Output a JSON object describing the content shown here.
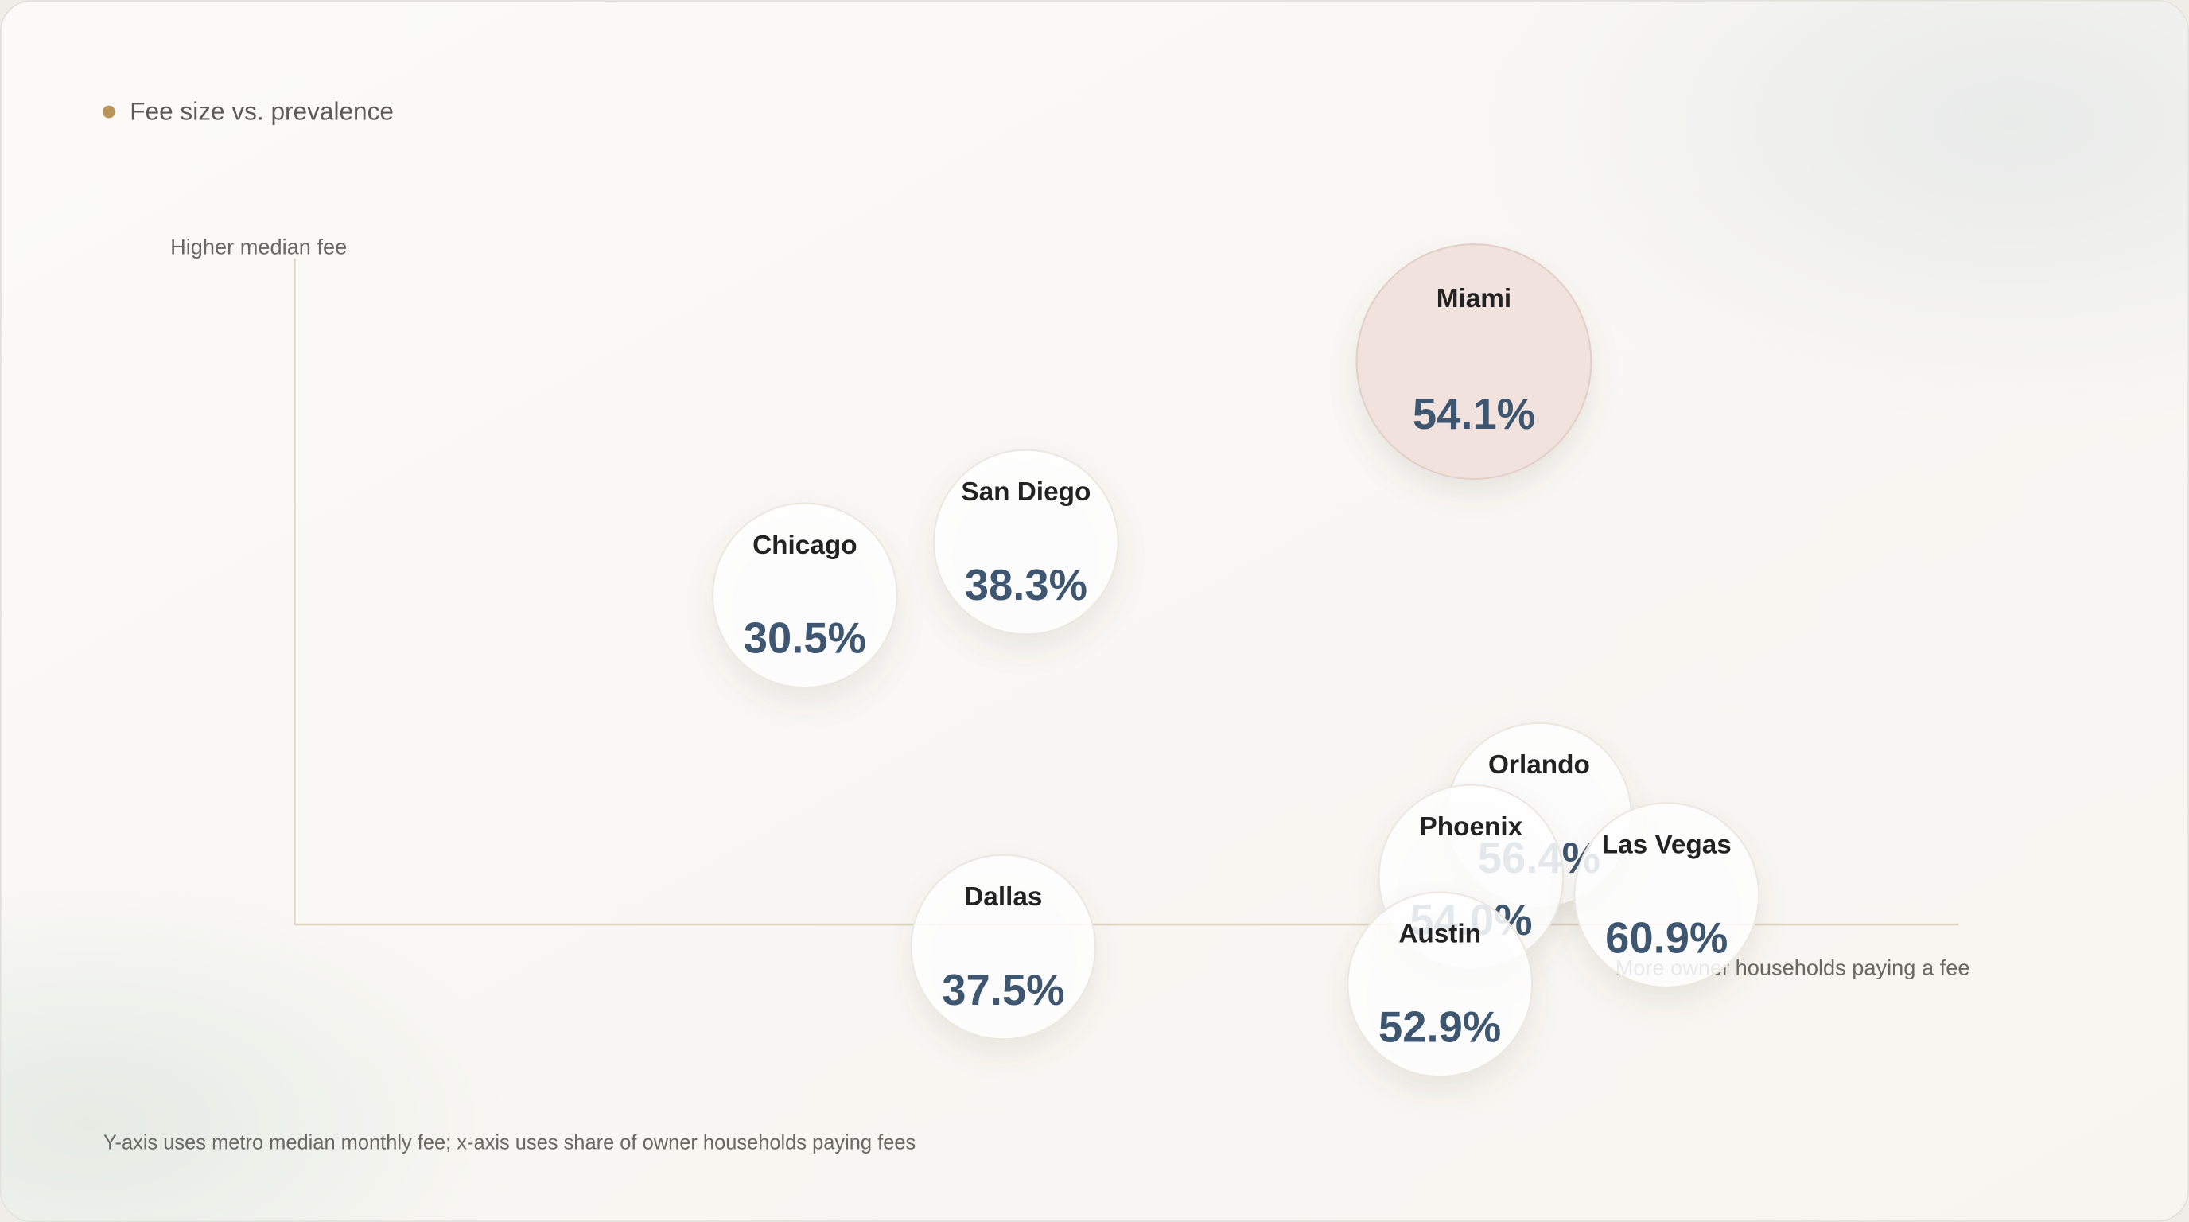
{
  "chart_data": {
    "type": "scatter",
    "title": "Fee size vs. prevalence",
    "y_label": "Higher median fee",
    "x_label": "More owner households paying a fee",
    "footnote": "Y-axis uses metro median monthly fee; x-axis uses share of owner households paying fees",
    "xlim": [
      12.5,
      71.2
    ],
    "ylim": [
      0,
      100
    ],
    "points": [
      {
        "name": "Miami",
        "share": 54.1,
        "share_label": "54.1%",
        "fee_level": 84.5,
        "color": "#f1e2dd"
      },
      {
        "name": "San Diego",
        "share": 38.3,
        "share_label": "38.3%",
        "fee_level": 57.4,
        "color": "#ffffff"
      },
      {
        "name": "Chicago",
        "share": 30.5,
        "share_label": "30.5%",
        "fee_level": 49.4,
        "color": "#ffffff"
      },
      {
        "name": "Dallas",
        "share": 37.5,
        "share_label": "37.5%",
        "fee_level": -3.4,
        "color": "#ffffff"
      },
      {
        "name": "Orlando",
        "share": 56.4,
        "share_label": "56.4%",
        "fee_level": 16.4,
        "color": "#ffffff"
      },
      {
        "name": "Phoenix",
        "share": 54.0,
        "share_label": "54.0%",
        "fee_level": 7.1,
        "color": "#ffffff"
      },
      {
        "name": "Las Vegas",
        "share": 60.9,
        "share_label": "60.9%",
        "fee_level": 4.4,
        "color": "#ffffff"
      },
      {
        "name": "Austin",
        "share": 52.9,
        "share_label": "52.9%",
        "fee_level": -9.0,
        "color": "#ffffff"
      }
    ]
  }
}
